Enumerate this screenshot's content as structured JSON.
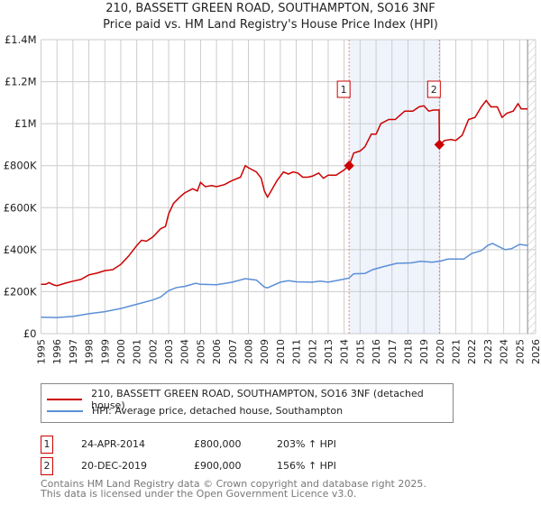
{
  "title": "210, BASSETT GREEN ROAD, SOUTHAMPTON, SO16 3NF",
  "subtitle": "Price paid vs. HM Land Registry's House Price Index (HPI)",
  "chart_data": {
    "type": "line",
    "title": "210, BASSETT GREEN ROAD, SOUTHAMPTON, SO16 3NF",
    "subtitle": "Price paid vs. HM Land Registry's House Price Index (HPI)",
    "xlim": [
      1995,
      2026
    ],
    "ylim": [
      0,
      1400000
    ],
    "grid": true,
    "x_ticks": [
      "1995",
      "1996",
      "1997",
      "1998",
      "1999",
      "2000",
      "2001",
      "2002",
      "2003",
      "2004",
      "2005",
      "2006",
      "2007",
      "2008",
      "2009",
      "2010",
      "2011",
      "2012",
      "2013",
      "2014",
      "2015",
      "2016",
      "2017",
      "2018",
      "2019",
      "2020",
      "2021",
      "2022",
      "2023",
      "2024",
      "2025",
      "2026"
    ],
    "y_ticks": [
      {
        "v": 0,
        "label": "£0"
      },
      {
        "v": 200000,
        "label": "£200K"
      },
      {
        "v": 400000,
        "label": "£400K"
      },
      {
        "v": 600000,
        "label": "£600K"
      },
      {
        "v": 800000,
        "label": "£800K"
      },
      {
        "v": 1000000,
        "label": "£1M"
      },
      {
        "v": 1200000,
        "label": "£1.2M"
      },
      {
        "v": 1400000,
        "label": "£1.4M"
      }
    ],
    "shaded_range": [
      2014.31,
      2019.97
    ],
    "projection_from": 2025.5,
    "series": [
      {
        "name": "210, BASSETT GREEN ROAD, SOUTHAMPTON, SO16 3NF (detached house)",
        "color": "#cc0000",
        "x": [
          1995,
          1995.3,
          1995.5,
          1995.8,
          1996,
          1996.5,
          1997,
          1997.5,
          1998,
          1998.5,
          1999,
          1999.5,
          2000,
          2000.5,
          2001,
          2001.3,
          2001.6,
          2002,
          2002.5,
          2002.8,
          2003,
          2003.3,
          2003.7,
          2004,
          2004.5,
          2004.8,
          2005,
          2005.3,
          2005.7,
          2006,
          2006.5,
          2007,
          2007.5,
          2007.8,
          2008,
          2008.5,
          2008.8,
          2009,
          2009.2,
          2009.5,
          2009.8,
          2010.2,
          2010.5,
          2010.8,
          2011.1,
          2011.4,
          2011.7,
          2012,
          2012.4,
          2012.7,
          2013,
          2013.5,
          2014,
          2014.31,
          2014.6,
          2015,
          2015.3,
          2015.7,
          2016,
          2016.3,
          2016.8,
          2017.2,
          2017.5,
          2017.8,
          2018.3,
          2018.7,
          2019,
          2019.3,
          2019.6,
          2019.95,
          2019.97,
          2020.3,
          2020.7,
          2021,
          2021.4,
          2021.8,
          2022.2,
          2022.6,
          2022.9,
          2023.2,
          2023.6,
          2023.9,
          2024.2,
          2024.6,
          2024.9,
          2025.1,
          2025.5
        ],
        "y": [
          235000,
          235000,
          243000,
          232000,
          228000,
          240000,
          250000,
          258000,
          280000,
          288000,
          300000,
          305000,
          330000,
          370000,
          420000,
          445000,
          440000,
          460000,
          500000,
          510000,
          570000,
          620000,
          650000,
          670000,
          690000,
          680000,
          720000,
          700000,
          705000,
          700000,
          710000,
          730000,
          745000,
          800000,
          790000,
          770000,
          740000,
          680000,
          650000,
          690000,
          730000,
          770000,
          760000,
          770000,
          765000,
          745000,
          745000,
          750000,
          765000,
          740000,
          755000,
          755000,
          780000,
          800000,
          860000,
          870000,
          890000,
          950000,
          950000,
          1000000,
          1020000,
          1020000,
          1040000,
          1060000,
          1060000,
          1080000,
          1085000,
          1060000,
          1065000,
          1065000,
          900000,
          920000,
          925000,
          920000,
          945000,
          1020000,
          1030000,
          1080000,
          1110000,
          1080000,
          1080000,
          1030000,
          1050000,
          1060000,
          1095000,
          1070000,
          1070000
        ]
      },
      {
        "name": "HPI: Average price, detached house, Southampton",
        "color": "#5b8fd6",
        "x": [
          1995,
          1996,
          1997,
          1998,
          1999,
          2000,
          2001,
          2002,
          2002.5,
          2003,
          2003.5,
          2004,
          2004.7,
          2005,
          2006,
          2007,
          2007.8,
          2008.5,
          2009,
          2009.2,
          2010,
          2010.5,
          2011,
          2012,
          2012.5,
          2013,
          2014,
          2014.3,
          2014.6,
          2015.3,
          2015.8,
          2016.5,
          2017.3,
          2018.2,
          2018.8,
          2019.5,
          2020,
          2020.5,
          2021.5,
          2022,
          2022.6,
          2023,
          2023.3,
          2023.6,
          2024.1,
          2024.5,
          2025,
          2025.5
        ],
        "y": [
          78000,
          77000,
          82000,
          95000,
          105000,
          120000,
          140000,
          160000,
          175000,
          205000,
          220000,
          225000,
          240000,
          235000,
          233000,
          245000,
          262000,
          255000,
          222000,
          218000,
          245000,
          252000,
          247000,
          245000,
          250000,
          245000,
          260000,
          265000,
          285000,
          287000,
          305000,
          320000,
          335000,
          337000,
          345000,
          340000,
          345000,
          355000,
          355000,
          382000,
          395000,
          420000,
          430000,
          418000,
          400000,
          405000,
          425000,
          420000
        ]
      }
    ],
    "sales": [
      {
        "label": "1",
        "x": 2014.31,
        "y": 800000,
        "date": "24-APR-2014",
        "price": "£800,000",
        "hpi": "203% ↑ HPI"
      },
      {
        "label": "2",
        "x": 2019.97,
        "y": 900000,
        "date": "20-DEC-2019",
        "price": "£900,000",
        "hpi": "156% ↑ HPI"
      }
    ]
  },
  "legend": {
    "red": "210, BASSETT GREEN ROAD, SOUTHAMPTON, SO16 3NF (detached house)",
    "blue": "HPI: Average price, detached house, Southampton"
  },
  "footer": {
    "line1": "Contains HM Land Registry data © Crown copyright and database right 2025.",
    "line2": "This data is licensed under the Open Government Licence v3.0."
  }
}
